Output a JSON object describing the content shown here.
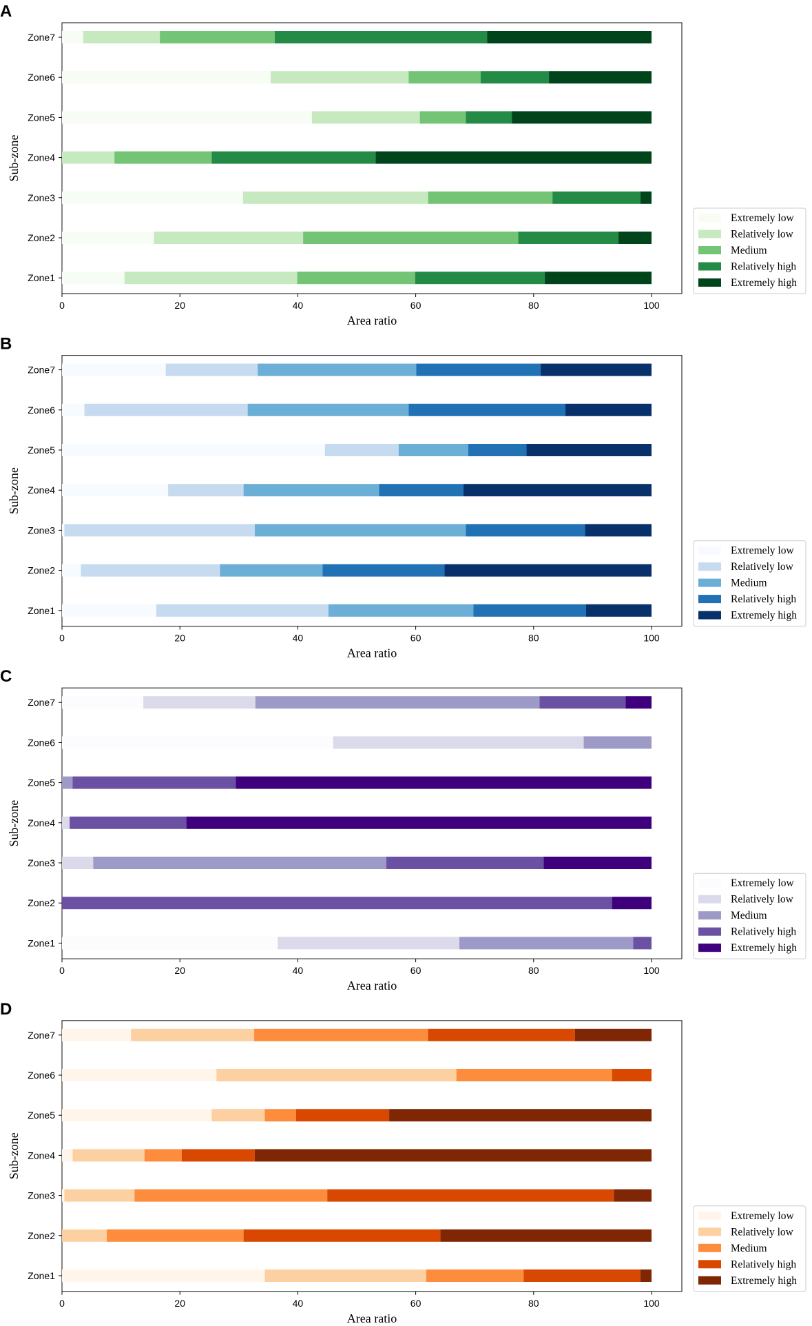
{
  "chart_data": [
    {
      "type": "bar",
      "orientation": "horizontal-stacked",
      "panel_label": "A",
      "xlabel": "Area ratio",
      "ylabel": "Sub-zone",
      "xlim": [
        0,
        100
      ],
      "xticks": [
        "0",
        "20",
        "40",
        "60",
        "80",
        "100"
      ],
      "categories": [
        "Zone1",
        "Zone2",
        "Zone3",
        "Zone4",
        "Zone5",
        "Zone6",
        "Zone7"
      ],
      "legend_position": "lower-right-outside",
      "colors": [
        "#f7fcf5",
        "#c7e9c0",
        "#74c476",
        "#238b45",
        "#00441b"
      ],
      "series": [
        {
          "name": "Extremely low",
          "values": [
            10.6,
            15.6,
            30.7,
            0.0,
            42.4,
            35.4,
            3.6
          ]
        },
        {
          "name": "Relatively low",
          "values": [
            29.3,
            25.3,
            31.4,
            8.9,
            18.3,
            23.4,
            13.0
          ]
        },
        {
          "name": "Medium",
          "values": [
            20.0,
            36.5,
            21.1,
            16.5,
            7.8,
            12.2,
            19.5
          ]
        },
        {
          "name": "Relatively high",
          "values": [
            22.0,
            17.0,
            14.9,
            27.8,
            7.8,
            11.6,
            36.0
          ]
        },
        {
          "name": "Extremely high",
          "values": [
            18.1,
            5.6,
            1.9,
            46.8,
            23.7,
            17.4,
            27.9
          ]
        }
      ]
    },
    {
      "type": "bar",
      "orientation": "horizontal-stacked",
      "panel_label": "B",
      "xlabel": "Area ratio",
      "ylabel": "Sub-zone",
      "xlim": [
        0,
        100
      ],
      "xticks": [
        "0",
        "20",
        "40",
        "60",
        "80",
        "100"
      ],
      "categories": [
        "Zone1",
        "Zone2",
        "Zone3",
        "Zone4",
        "Zone5",
        "Zone6",
        "Zone7"
      ],
      "legend_position": "lower-right-outside",
      "colors": [
        "#f7fbff",
        "#c6dbef",
        "#6baed6",
        "#2171b5",
        "#08306b"
      ],
      "series": [
        {
          "name": "Extremely low",
          "values": [
            16.0,
            3.2,
            0.4,
            18.0,
            44.6,
            3.8,
            17.6
          ]
        },
        {
          "name": "Relatively low",
          "values": [
            29.2,
            23.6,
            32.3,
            12.8,
            12.5,
            27.7,
            15.6
          ]
        },
        {
          "name": "Medium",
          "values": [
            24.6,
            17.4,
            35.8,
            23.0,
            11.8,
            27.3,
            26.9
          ]
        },
        {
          "name": "Relatively high",
          "values": [
            19.1,
            20.7,
            20.2,
            14.3,
            9.9,
            26.6,
            21.1
          ]
        },
        {
          "name": "Extremely high",
          "values": [
            11.1,
            35.1,
            11.3,
            31.9,
            21.2,
            14.6,
            18.8
          ]
        }
      ]
    },
    {
      "type": "bar",
      "orientation": "horizontal-stacked",
      "panel_label": "C",
      "xlabel": "Area ratio",
      "ylabel": "Sub-zone",
      "xlim": [
        0,
        100
      ],
      "xticks": [
        "0",
        "20",
        "40",
        "60",
        "80",
        "100"
      ],
      "categories": [
        "Zone1",
        "Zone2",
        "Zone3",
        "Zone4",
        "Zone5",
        "Zone6",
        "Zone7"
      ],
      "legend_position": "lower-right-outside",
      "colors": [
        "#fcfbfd",
        "#dadaeb",
        "#9e9ac8",
        "#6a51a3",
        "#3f007d"
      ],
      "series": [
        {
          "name": "Extremely low",
          "values": [
            36.6,
            0.0,
            0.0,
            0.0,
            0.0,
            46.0,
            13.8
          ]
        },
        {
          "name": "Relatively low",
          "values": [
            30.8,
            0.0,
            5.3,
            1.3,
            0.0,
            42.5,
            19.0
          ]
        },
        {
          "name": "Medium",
          "values": [
            29.5,
            0.0,
            49.7,
            0.0,
            1.8,
            11.5,
            48.2
          ]
        },
        {
          "name": "Relatively high",
          "values": [
            3.1,
            93.3,
            26.7,
            19.8,
            27.7,
            0.0,
            14.6
          ]
        },
        {
          "name": "Extremely high",
          "values": [
            0.0,
            6.7,
            18.3,
            78.9,
            70.5,
            0.0,
            4.4
          ]
        }
      ]
    },
    {
      "type": "bar",
      "orientation": "horizontal-stacked",
      "panel_label": "D",
      "xlabel": "Area ratio",
      "ylabel": "Sub-zone",
      "xlim": [
        0,
        100
      ],
      "xticks": [
        "0",
        "20",
        "40",
        "60",
        "80",
        "100"
      ],
      "categories": [
        "Zone1",
        "Zone2",
        "Zone3",
        "Zone4",
        "Zone5",
        "Zone6",
        "Zone7"
      ],
      "legend_position": "lower-right-outside",
      "colors": [
        "#fff5eb",
        "#fdd0a2",
        "#fd8d3c",
        "#d94801",
        "#7f2704"
      ],
      "series": [
        {
          "name": "Extremely low",
          "values": [
            34.4,
            0.0,
            0.4,
            1.8,
            25.4,
            26.2,
            11.7
          ]
        },
        {
          "name": "Relatively low",
          "values": [
            27.4,
            7.6,
            11.9,
            12.2,
            9.0,
            40.7,
            20.9
          ]
        },
        {
          "name": "Medium",
          "values": [
            16.5,
            23.2,
            32.7,
            6.3,
            5.3,
            26.4,
            29.5
          ]
        },
        {
          "name": "Relatively high",
          "values": [
            19.8,
            33.4,
            48.6,
            12.4,
            15.8,
            6.7,
            24.9
          ]
        },
        {
          "name": "Extremely high",
          "values": [
            1.9,
            35.8,
            6.4,
            67.3,
            44.5,
            0.0,
            13.0
          ]
        }
      ]
    }
  ]
}
